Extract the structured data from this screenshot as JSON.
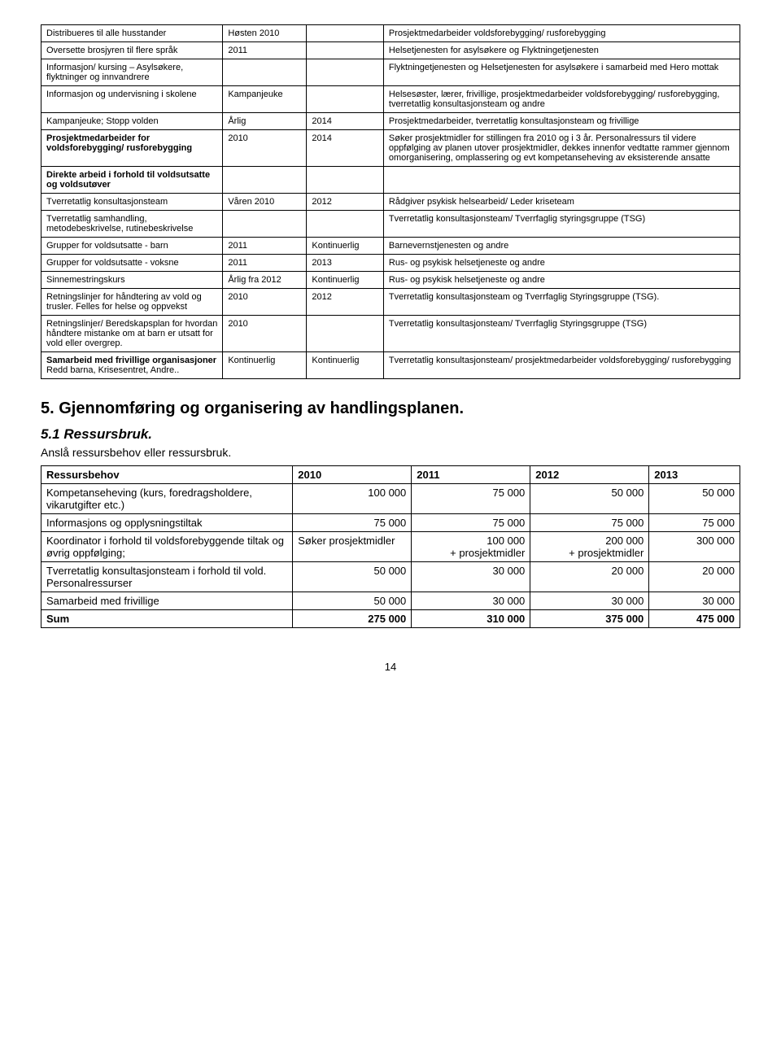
{
  "t1": {
    "rows": [
      [
        "Distribueres til alle husstander",
        "Høsten 2010",
        "",
        "Prosjektmedarbeider voldsforebygging/ rusforebygging"
      ],
      [
        "Oversette brosjyren til flere språk",
        "2011",
        "",
        "Helsetjenesten for asylsøkere og Flyktningetjenesten"
      ],
      [
        "Informasjon/ kursing – Asylsøkere, flyktninger og innvandrere",
        "",
        "",
        "Flyktningetjenesten og Helsetjenesten for asylsøkere i samarbeid med Hero mottak"
      ],
      [
        "Informasjon og undervisning i skolene",
        "Kampanjeuke",
        "",
        "Helsesøster, lærer, frivillige, prosjektmedarbeider voldsforebygging/ rusforebygging, tverretatlig konsultasjonsteam og andre"
      ],
      [
        "Kampanjeuke; Stopp volden",
        "Årlig",
        "2014",
        "Prosjektmedarbeider, tverretatlig konsultasjonsteam og frivillige"
      ],
      [
        "<b>Prosjektmedarbeider for voldsforebygging/ rusforebygging</b>",
        "2010",
        "2014",
        "Søker prosjektmidler for stillingen fra 2010 og i 3 år. Personalressurs til videre oppfølging av planen utover prosjektmidler, dekkes innenfor vedtatte rammer gjennom omorganisering, omplassering og evt kompetanseheving av eksisterende ansatte"
      ],
      [
        "<b>Direkte arbeid i forhold til voldsutsatte og voldsutøver</b>",
        "",
        "",
        ""
      ],
      [
        "Tverretatlig konsultasjonsteam",
        "Våren 2010",
        "2012",
        "Rådgiver psykisk helsearbeid/ Leder kriseteam"
      ],
      [
        "Tverretatlig samhandling, metodebeskrivelse, rutinebeskrivelse",
        "",
        "",
        "Tverretatlig konsultasjonsteam/ Tverrfaglig styringsgruppe (TSG)"
      ],
      [
        "Grupper for voldsutsatte - barn",
        "2011",
        "Kontinuerlig",
        "Barnevernstjenesten og andre"
      ],
      [
        "Grupper for voldsutsatte - voksne",
        "2011",
        "2013",
        "Rus- og psykisk helsetjeneste og andre"
      ],
      [
        "Sinnemestringskurs",
        "Årlig fra 2012",
        "Kontinuerlig",
        "Rus- og psykisk helsetjeneste og andre"
      ],
      [
        "Retningslinjer for håndtering av vold og trusler. Felles for helse og oppvekst",
        "2010",
        "2012",
        "Tverretatlig konsultasjonsteam og Tverrfaglig Styringsgruppe (TSG)."
      ],
      [
        "Retningslinjer/ Beredskapsplan for hvordan håndtere mistanke om at barn er utsatt for vold eller overgrep.",
        "2010",
        "",
        "Tverretatlig konsultasjonsteam/ Tverrfaglig Styringsgruppe (TSG)"
      ],
      [
        "<b>Samarbeid med frivillige organisasjoner</b><br>Redd barna, Krisesentret, Andre..",
        "Kontinuerlig",
        "Kontinuerlig",
        "Tverretatlig konsultasjonsteam/ prosjektmedarbeider voldsforebygging/ rusforebygging"
      ]
    ]
  },
  "h2": "5. Gjennomføring og organisering av handlingsplanen.",
  "h3": "5.1 Ressursbruk.",
  "sub": "Anslå ressursbehov eller ressursbruk.",
  "t2": {
    "head": [
      "Ressursbehov",
      "2010",
      "2011",
      "2012",
      "2013"
    ],
    "rows": [
      [
        "Kompetanseheving (kurs, foredragsholdere, vikarutgifter etc.)",
        "100 000",
        "75 000",
        "50 000",
        "50 000"
      ],
      [
        "Informasjons og opplysningstiltak",
        "75 000",
        "75 000",
        "75 000",
        "75 000"
      ],
      [
        "Koordinator i forhold til voldsforebyggende tiltak og øvrig oppfølging;",
        "Søker prosjektmidler",
        "100 000<br>+ prosjektmidler",
        "200 000<br>+ prosjektmidler",
        "300 000"
      ],
      [
        "Tverretatlig konsultasjonsteam i forhold til vold. Personalressurser",
        "50 000",
        "30 000",
        "20 000",
        "20 000"
      ],
      [
        "Samarbeid med frivillige",
        "50 000",
        "30 000",
        "30 000",
        "30 000"
      ]
    ],
    "sum": [
      "Sum",
      "275 000",
      "310 000",
      "375 000",
      "475 000"
    ]
  },
  "page": "14"
}
